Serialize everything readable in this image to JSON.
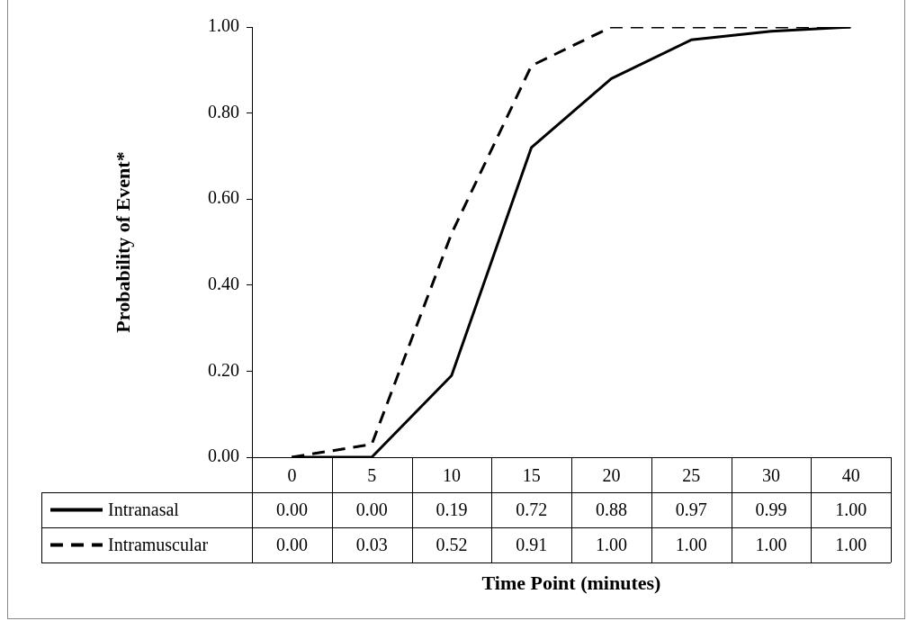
{
  "chart_data": {
    "type": "line",
    "xlabel": "Time Point (minutes)",
    "ylabel": "Probability of Event*",
    "categories": [
      "0",
      "5",
      "10",
      "15",
      "20",
      "25",
      "30",
      "40"
    ],
    "ylim": [
      0,
      1
    ],
    "yticks": [
      {
        "value": 0,
        "label": "0.00"
      },
      {
        "value": 0.2,
        "label": "0.20"
      },
      {
        "value": 0.4,
        "label": "0.40"
      },
      {
        "value": 0.6,
        "label": "0.60"
      },
      {
        "value": 0.8,
        "label": "0.80"
      },
      {
        "value": 1,
        "label": "1.00"
      }
    ],
    "grid": false,
    "legend": "bottom",
    "marker": "none",
    "series": [
      {
        "name": "Intranasal",
        "color": "#000000",
        "line_style": "solid",
        "values": [
          0,
          0,
          0.19,
          0.72,
          0.88,
          0.97,
          0.99,
          1
        ],
        "value_labels": [
          "0.00",
          "0.00",
          "0.19",
          "0.72",
          "0.88",
          "0.97",
          "0.99",
          "1.00"
        ]
      },
      {
        "name": "Intramuscular",
        "color": "#000000",
        "line_style": "dashed",
        "values": [
          0,
          0.03,
          0.52,
          0.91,
          1,
          1,
          1,
          1
        ],
        "value_labels": [
          "0.00",
          "0.03",
          "0.52",
          "0.91",
          "1.00",
          "1.00",
          "1.00",
          "1.00"
        ]
      }
    ]
  }
}
